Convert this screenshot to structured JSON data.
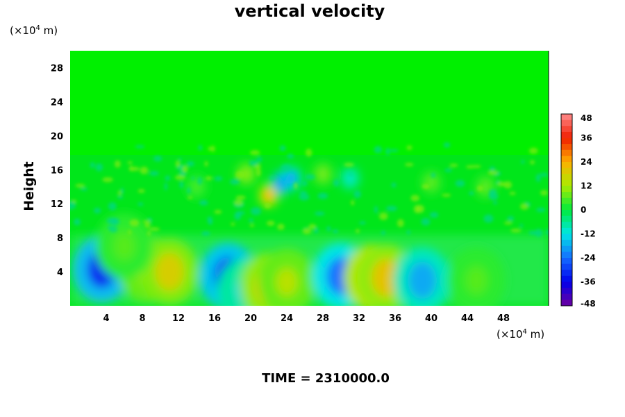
{
  "chart_data": {
    "type": "heatmap",
    "title": "vertical velocity",
    "ylabel": "Height",
    "x_unit_prefix": "(×10",
    "x_unit_exp": "4",
    "x_unit_suffix": " m)",
    "y_unit_prefix": "(×10",
    "y_unit_exp": "4",
    "y_unit_suffix": " m)",
    "xlim": [
      0,
      53
    ],
    "ylim": [
      0,
      30
    ],
    "xticks": [
      4,
      8,
      12,
      16,
      20,
      24,
      28,
      32,
      36,
      40,
      44,
      48
    ],
    "yticks": [
      4,
      8,
      12,
      16,
      20,
      24,
      28
    ],
    "colorbar": {
      "ticks": [
        48,
        36,
        24,
        12,
        0,
        -12,
        -24,
        -36,
        -48
      ],
      "vmin": -48,
      "vmax": 48
    },
    "features": [
      {
        "x": 3.5,
        "y": 4.3,
        "value": -32
      },
      {
        "x": 8.5,
        "y": 4.3,
        "value": 14
      },
      {
        "x": 11.0,
        "y": 4.0,
        "value": 18
      },
      {
        "x": 17.5,
        "y": 3.5,
        "value": -30
      },
      {
        "x": 19.5,
        "y": 1.8,
        "value": -14
      },
      {
        "x": 22.0,
        "y": 2.3,
        "value": 20
      },
      {
        "x": 24.0,
        "y": 2.8,
        "value": 14
      },
      {
        "x": 30.0,
        "y": 3.5,
        "value": -24
      },
      {
        "x": 33.5,
        "y": 3.3,
        "value": 26
      },
      {
        "x": 35.0,
        "y": 3.3,
        "value": 20
      },
      {
        "x": 39.0,
        "y": 3.0,
        "value": -18
      },
      {
        "x": 45.0,
        "y": 3.0,
        "value": 6
      },
      {
        "x": 22.0,
        "y": 13.0,
        "value": 24
      },
      {
        "x": 23.5,
        "y": 14.5,
        "value": -30
      },
      {
        "x": 24.5,
        "y": 15.0,
        "value": -22
      },
      {
        "x": 19.5,
        "y": 15.5,
        "value": 12
      },
      {
        "x": 31.0,
        "y": 15.0,
        "value": -12
      },
      {
        "x": 28.0,
        "y": 15.5,
        "value": 10
      },
      {
        "x": 40.0,
        "y": 14.5,
        "value": 8
      },
      {
        "x": 6.0,
        "y": 7.0,
        "value": 6
      },
      {
        "x": 14.0,
        "y": 14.0,
        "value": 6
      },
      {
        "x": 46.0,
        "y": 14.0,
        "value": 8
      }
    ],
    "footer": "TIME = 2310000.0"
  }
}
